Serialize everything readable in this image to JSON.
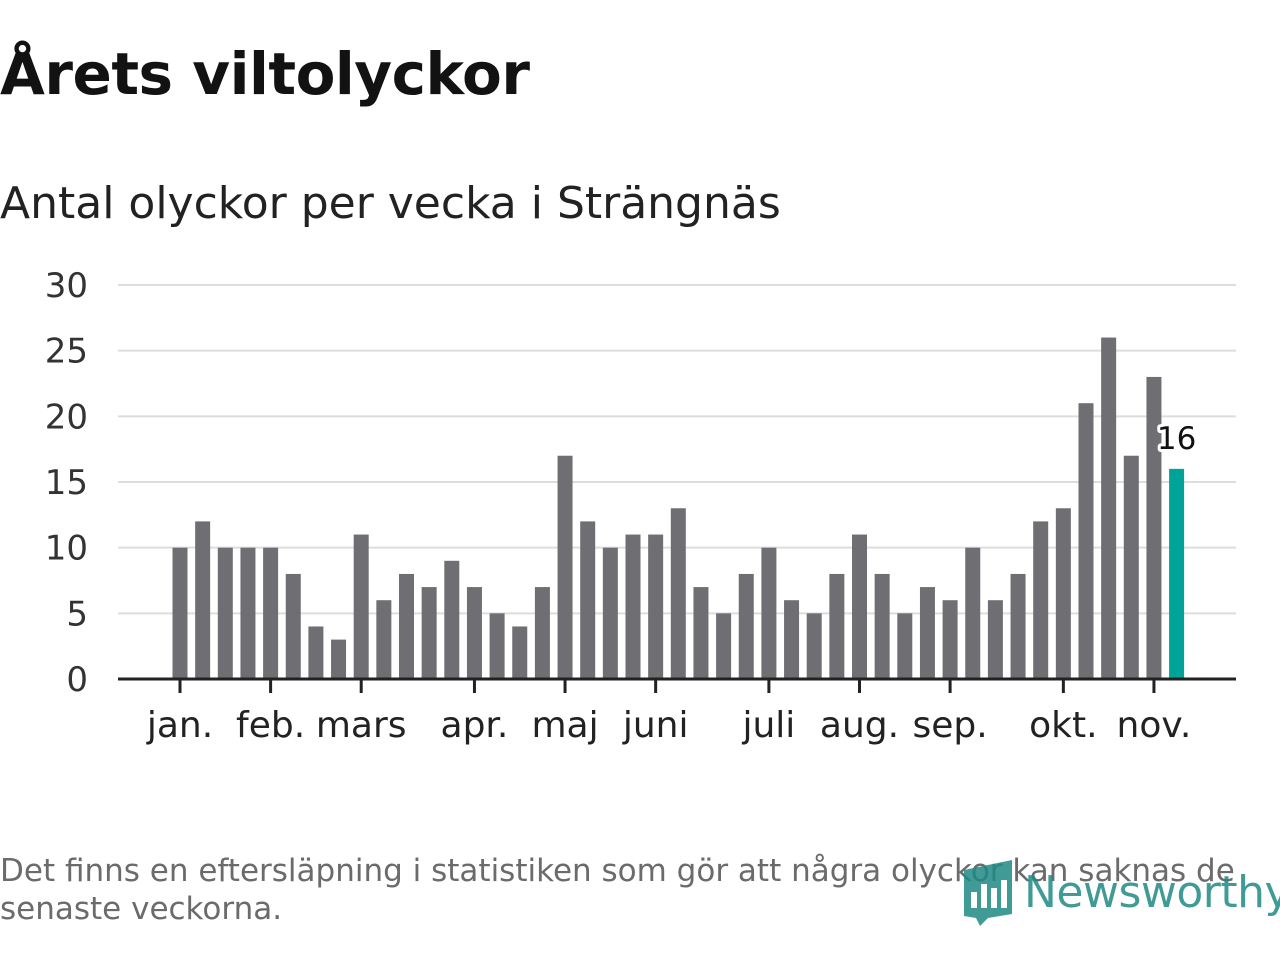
{
  "title": "Årets viltolyckor",
  "subtitle": "Antal olyckor per vecka i Strängnäs",
  "footnote": "Det finns en eftersläpning i statistiken som gör att några olyckor kan saknas de senaste veckorna.",
  "logo": {
    "text": "Newsworthy",
    "icon": "newsworthy-chart-icon"
  },
  "colors": {
    "bar": "#6f6e73",
    "highlight": "#00a398",
    "grid": "#dddddd",
    "axis": "#222222",
    "logo": "#1f8a86"
  },
  "chart_data": {
    "type": "bar",
    "title": "Antal olyckor per vecka i Strängnäs",
    "xlabel": "",
    "ylabel": "",
    "ylim": [
      0,
      30
    ],
    "yticks": [
      0,
      5,
      10,
      15,
      20,
      25,
      30
    ],
    "grid": true,
    "values": [
      10,
      12,
      10,
      10,
      10,
      8,
      4,
      3,
      11,
      6,
      8,
      7,
      9,
      7,
      5,
      4,
      7,
      17,
      12,
      10,
      11,
      11,
      13,
      7,
      5,
      8,
      10,
      6,
      5,
      8,
      11,
      8,
      5,
      7,
      6,
      10,
      6,
      8,
      12,
      13,
      21,
      26,
      17,
      23,
      16
    ],
    "highlight_index": 44,
    "highlight_label": "16",
    "month_labels": [
      {
        "label": "jan.",
        "week_index": 0
      },
      {
        "label": "feb.",
        "week_index": 4
      },
      {
        "label": "mars",
        "week_index": 8
      },
      {
        "label": "apr.",
        "week_index": 13
      },
      {
        "label": "maj",
        "week_index": 17
      },
      {
        "label": "juni",
        "week_index": 21
      },
      {
        "label": "juli",
        "week_index": 26
      },
      {
        "label": "aug.",
        "week_index": 30
      },
      {
        "label": "sep.",
        "week_index": 34
      },
      {
        "label": "okt.",
        "week_index": 39
      },
      {
        "label": "nov.",
        "week_index": 43
      }
    ]
  }
}
